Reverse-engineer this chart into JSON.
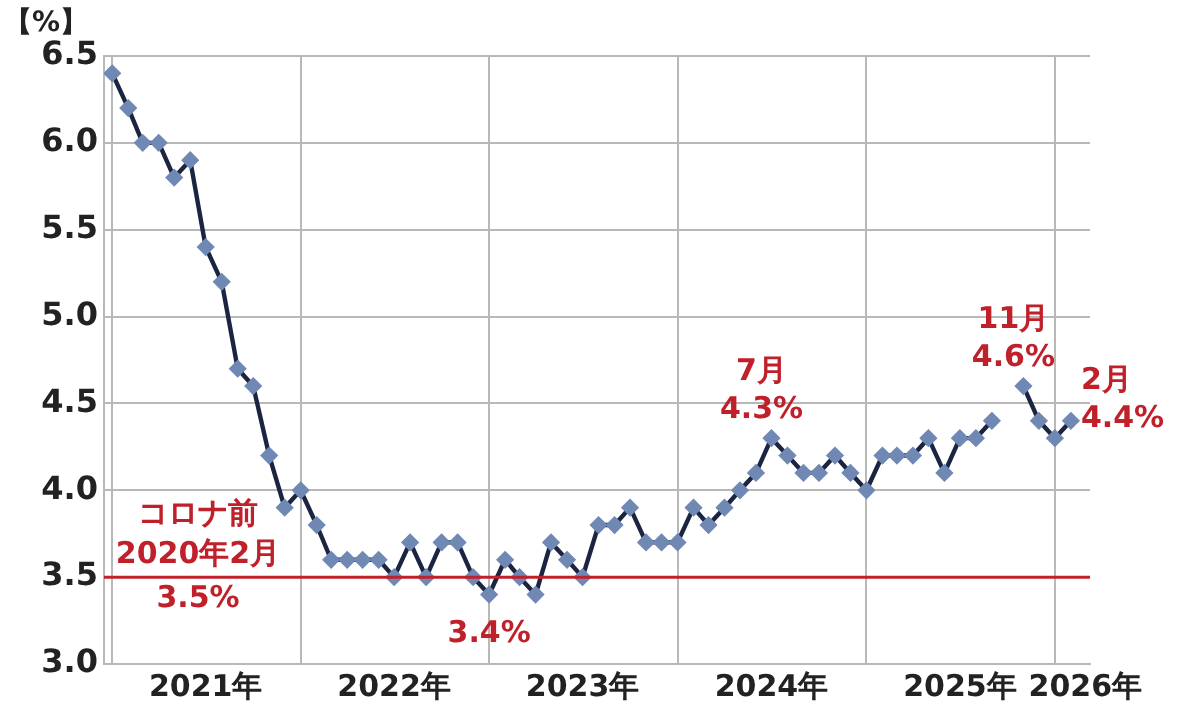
{
  "chart_data": {
    "type": "line",
    "ylabel": "【%】",
    "x": [
      "2021-01",
      "2021-02",
      "2021-03",
      "2021-04",
      "2021-05",
      "2021-06",
      "2021-07",
      "2021-08",
      "2021-09",
      "2021-10",
      "2021-11",
      "2021-12",
      "2022-01",
      "2022-02",
      "2022-03",
      "2022-04",
      "2022-05",
      "2022-06",
      "2022-07",
      "2022-08",
      "2022-09",
      "2022-10",
      "2022-11",
      "2022-12",
      "2023-01",
      "2023-02",
      "2023-03",
      "2023-04",
      "2023-05",
      "2023-06",
      "2023-07",
      "2023-08",
      "2023-09",
      "2023-10",
      "2023-11",
      "2023-12",
      "2024-01",
      "2024-02",
      "2024-03",
      "2024-04",
      "2024-05",
      "2024-06",
      "2024-07",
      "2024-08",
      "2024-09",
      "2024-10",
      "2024-11",
      "2024-12",
      "2025-01",
      "2025-02",
      "2025-03",
      "2025-04",
      "2025-05",
      "2025-06",
      "2025-07",
      "2025-08",
      "2025-09",
      "2025-10",
      "2025-11",
      "2025-12",
      "2026-01",
      "2026-02"
    ],
    "series": [
      {
        "color": "#1b2440",
        "values": [
          6.4,
          6.2,
          6.0,
          6.0,
          5.8,
          5.9,
          5.4,
          5.2,
          4.7,
          4.6,
          4.2,
          3.9,
          4.0,
          3.8,
          3.6,
          3.6,
          3.6,
          3.6,
          3.5,
          3.7,
          3.5,
          3.7,
          3.7,
          3.5,
          3.4,
          3.6,
          3.5,
          3.4,
          3.7,
          3.6,
          3.5,
          3.8,
          3.8,
          3.9,
          3.7,
          3.7,
          3.7,
          3.9,
          3.8,
          3.9,
          4.0,
          4.1,
          4.3,
          4.2,
          4.1,
          4.1,
          4.2,
          4.1,
          4.0,
          4.2,
          4.2,
          4.2,
          4.3,
          4.1,
          4.3,
          4.3,
          4.4,
          null,
          4.6,
          4.4,
          4.3,
          4.4
        ]
      }
    ],
    "xlim": [
      "2020-12-16",
      "2026-03-10"
    ],
    "xticks": [
      {
        "value": "2021-01-01",
        "label": null
      },
      {
        "value": "2021-07-01",
        "label": "2021年"
      },
      {
        "value": "2022-01-01",
        "label": null
      },
      {
        "value": "2022-07-01",
        "label": "2022年"
      },
      {
        "value": "2023-01-01",
        "label": null
      },
      {
        "value": "2023-07-01",
        "label": "2023年"
      },
      {
        "value": "2024-01-01",
        "label": null
      },
      {
        "value": "2024-07-01",
        "label": "2024年"
      },
      {
        "value": "2025-01-01",
        "label": null
      },
      {
        "value": "2025-07-01",
        "label": "2025年"
      },
      {
        "value": "2026-01-01",
        "label": null
      },
      {
        "value": "2026-03-01",
        "label": "2026年"
      }
    ],
    "ylim": [
      3.0,
      6.5
    ],
    "yticks": [
      {
        "value": 3.0,
        "label": "3.0"
      },
      {
        "value": 3.5,
        "label": "3.5"
      },
      {
        "value": 4.0,
        "label": "4.0"
      },
      {
        "value": 4.5,
        "label": "4.5"
      },
      {
        "value": 5.0,
        "label": "5.0"
      },
      {
        "value": 5.5,
        "label": "5.5"
      },
      {
        "value": 6.0,
        "label": "6.0"
      },
      {
        "value": 6.5,
        "label": "6.5"
      }
    ],
    "grid": true,
    "legend": false,
    "marker": "diamond",
    "line_style": "solid",
    "ref_lines": [
      {
        "axis": "y",
        "value": 3.5,
        "label": "コロナ前\n2020年2月\n3.5%",
        "color": "#c0202a"
      }
    ],
    "annotations": [
      {
        "text": "3.4%",
        "x": "2023-01",
        "y": 3.4
      },
      {
        "text": "7月\n4.3%",
        "x": "2024-07",
        "y": 4.3
      },
      {
        "text": "11月\n4.6%",
        "x": "2025-11",
        "y": 4.6
      },
      {
        "text": "2月\n4.4%",
        "x": "2026-02",
        "y": 4.4
      }
    ]
  }
}
